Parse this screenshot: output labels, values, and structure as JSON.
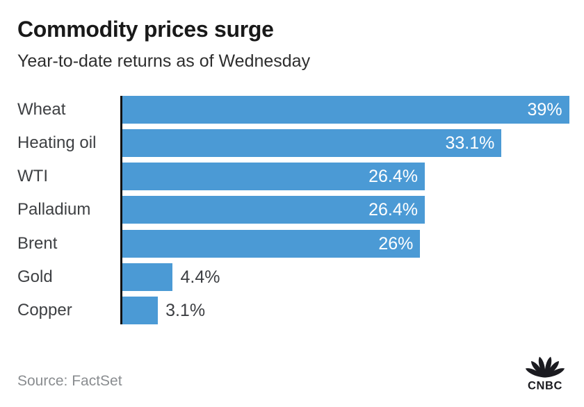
{
  "header": {
    "title": "Commodity prices surge",
    "subtitle": "Year-to-date returns as of Wednesday"
  },
  "chart_data": {
    "type": "bar",
    "orientation": "horizontal",
    "title": "Commodity prices surge",
    "subtitle": "Year-to-date returns as of Wednesday",
    "categories": [
      "Wheat",
      "Heating oil",
      "WTI",
      "Palladium",
      "Brent",
      "Gold",
      "Copper"
    ],
    "values": [
      39,
      33.1,
      26.4,
      26.4,
      26,
      4.4,
      3.1
    ],
    "value_labels": [
      "39%",
      "33.1%",
      "26.4%",
      "26.4%",
      "26%",
      "4.4%",
      "3.1%"
    ],
    "label_positions": [
      "inside",
      "inside",
      "inside",
      "inside",
      "inside",
      "outside",
      "outside"
    ],
    "unit": "%",
    "xlabel": "",
    "ylabel": "",
    "axis_max": 40.3,
    "grid": false,
    "legend": false
  },
  "footer": {
    "source": "Source: FactSet",
    "logo_text": "CNBC"
  },
  "colors": {
    "bar": "#4b9ad5",
    "title": "#191919",
    "subtitle": "#2e2e2e",
    "category_label": "#3e4043",
    "value_inside": "#ffffff",
    "value_outside": "#3c3e42",
    "axis": "#121212",
    "source": "#8a8d90",
    "logo": "#1b1b20",
    "background": "#ffffff"
  }
}
